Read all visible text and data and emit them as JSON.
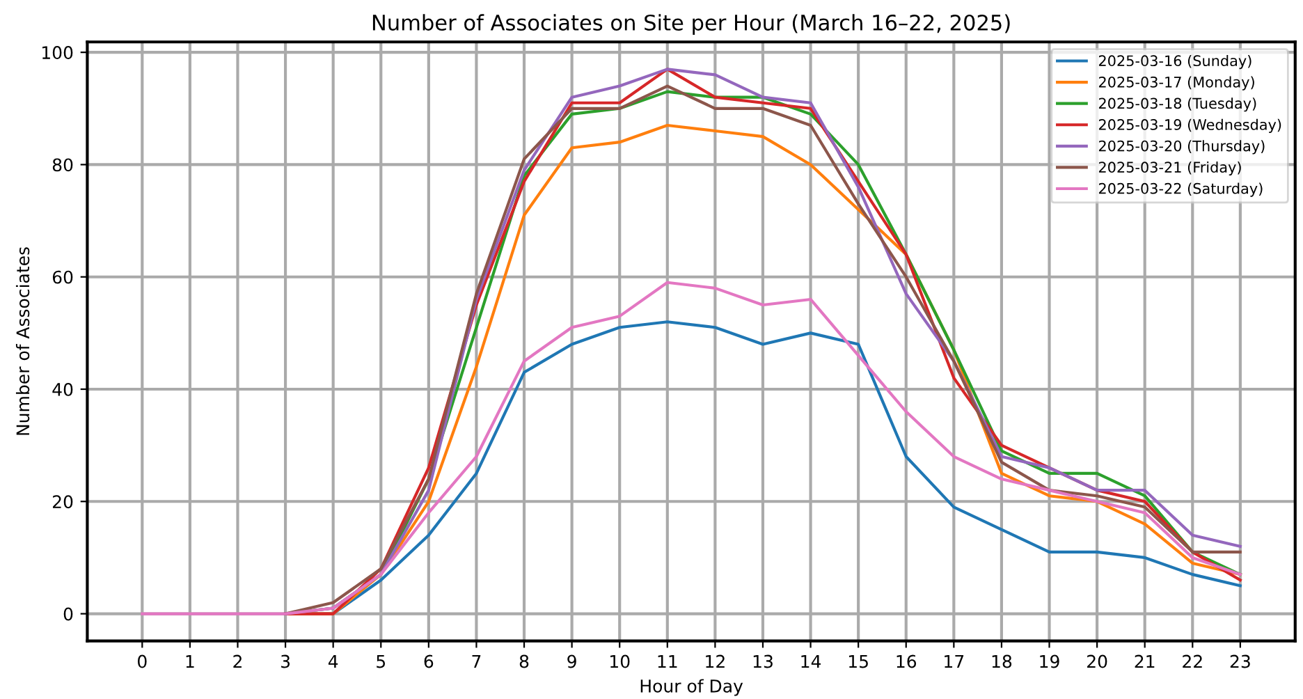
{
  "chart_data": {
    "type": "line",
    "title": "Number of Associates on Site per Hour (March 16–22, 2025)",
    "xlabel": "Hour of Day",
    "ylabel": "Number of Associates",
    "x": [
      0,
      1,
      2,
      3,
      4,
      5,
      6,
      7,
      8,
      9,
      10,
      11,
      12,
      13,
      14,
      15,
      16,
      17,
      18,
      19,
      20,
      21,
      22,
      23
    ],
    "xlim": [
      -1.15,
      24.15
    ],
    "xticks": [
      0,
      1,
      2,
      3,
      4,
      5,
      6,
      7,
      8,
      9,
      10,
      11,
      12,
      13,
      14,
      15,
      16,
      17,
      18,
      19,
      20,
      21,
      22,
      23
    ],
    "ylim": [
      -4.85,
      101.85
    ],
    "yticks": [
      0,
      20,
      40,
      60,
      80,
      100
    ],
    "grid": true,
    "legend": "top right",
    "marker": "none",
    "line_style": "solid",
    "series": [
      {
        "name": "2025-03-16 (Sunday)",
        "color": "#1f77b4",
        "values": [
          null,
          null,
          null,
          0,
          0,
          6,
          14,
          25,
          43,
          48,
          51,
          52,
          51,
          48,
          50,
          48,
          28,
          19,
          15,
          11,
          11,
          10,
          7,
          5
        ]
      },
      {
        "name": "2025-03-17 (Monday)",
        "color": "#ff7f0e",
        "values": [
          null,
          null,
          null,
          0,
          0,
          7,
          20,
          44,
          71,
          83,
          84,
          87,
          86,
          85,
          80,
          72,
          64,
          47,
          25,
          21,
          20,
          16,
          9,
          7
        ]
      },
      {
        "name": "2025-03-18 (Tuesday)",
        "color": "#2ca02c",
        "values": [
          null,
          null,
          null,
          0,
          1,
          7,
          24,
          51,
          78,
          89,
          90,
          93,
          92,
          92,
          89,
          80,
          64,
          47,
          29,
          25,
          25,
          21,
          11,
          7
        ]
      },
      {
        "name": "2025-03-19 (Wednesday)",
        "color": "#d62728",
        "values": [
          null,
          null,
          null,
          0,
          0,
          8,
          26,
          55,
          77,
          91,
          91,
          97,
          92,
          91,
          90,
          77,
          64,
          42,
          30,
          26,
          22,
          20,
          11,
          6
        ]
      },
      {
        "name": "2025-03-20 (Thursday)",
        "color": "#9467bd",
        "values": [
          null,
          null,
          null,
          0,
          1,
          7,
          22,
          56,
          79,
          92,
          94,
          97,
          96,
          92,
          91,
          76,
          57,
          45,
          28,
          26,
          22,
          22,
          14,
          12
        ]
      },
      {
        "name": "2025-03-21 (Friday)",
        "color": "#8c564b",
        "values": [
          null,
          null,
          null,
          0,
          2,
          8,
          24,
          57,
          81,
          90,
          90,
          94,
          90,
          90,
          87,
          73,
          60,
          45,
          27,
          22,
          21,
          19,
          11,
          11
        ]
      },
      {
        "name": "2025-03-22 (Saturday)",
        "color": "#e377c2",
        "values": [
          0,
          0,
          0,
          0,
          1,
          7,
          18,
          28,
          45,
          51,
          53,
          59,
          58,
          55,
          56,
          46,
          36,
          28,
          24,
          22,
          20,
          18,
          10,
          7
        ]
      }
    ]
  }
}
